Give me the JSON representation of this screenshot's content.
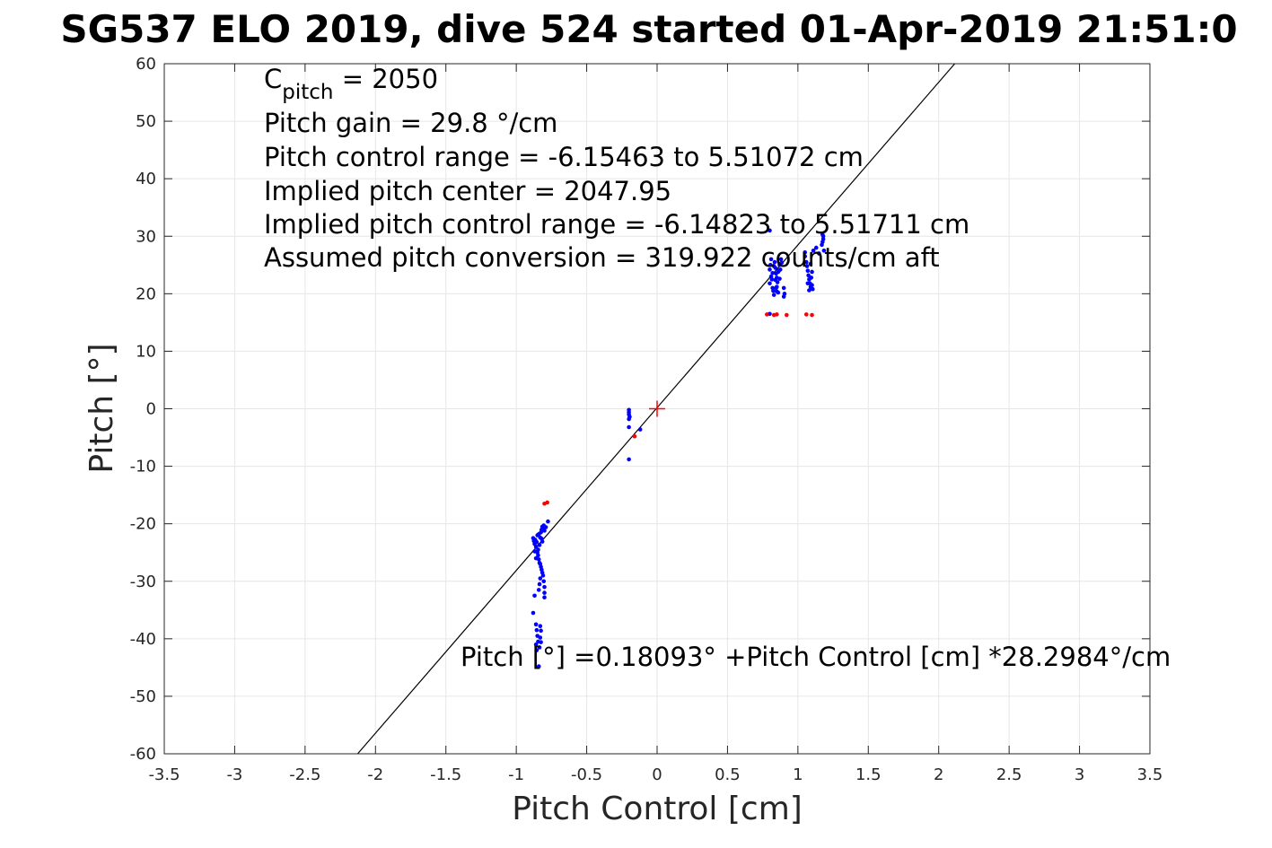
{
  "chart_data": {
    "type": "scatter",
    "title": "SG537 ELO 2019, dive 524 started 01-Apr-2019 21:51:0",
    "xlabel": "Pitch Control [cm]",
    "ylabel": "Pitch [°]",
    "xlim": [
      -3.5,
      3.5
    ],
    "ylim": [
      -60,
      60
    ],
    "xticks": [
      -3.5,
      -3,
      -2.5,
      -2,
      -1.5,
      -1,
      -0.5,
      0,
      0.5,
      1,
      1.5,
      2,
      2.5,
      3,
      3.5
    ],
    "xtick_labels": [
      "-3.5",
      "-3",
      "-2.5",
      "-2",
      "-1.5",
      "-1",
      "-0.5",
      "0",
      "0.5",
      "1",
      "1.5",
      "2",
      "2.5",
      "3",
      "3.5"
    ],
    "yticks": [
      60,
      50,
      40,
      30,
      20,
      10,
      0,
      -10,
      -20,
      -30,
      -40,
      -50,
      -60
    ],
    "ytick_labels": [
      "60",
      "50",
      "40",
      "30",
      "20",
      "10",
      "0",
      "-10",
      "-20",
      "-30",
      "-40",
      "-50",
      "-60"
    ],
    "grid": true,
    "annotations": {
      "cpitch_main": "C",
      "cpitch_sub": "pitch",
      "cpitch_value": " = 2050",
      "lines": [
        "Pitch gain = 29.8 °/cm",
        "Pitch control range = -6.15463 to 5.51072 cm",
        "Implied pitch center = 2047.95",
        "Implied pitch control range = -6.14823 to 5.51711 cm",
        "Assumed pitch conversion = 319.922 counts/cm aft"
      ],
      "fit_label": "Pitch [°] =0.18093° +Pitch Control [cm] *28.2984°/cm"
    },
    "fit": {
      "intercept": 0.18093,
      "slope": 28.2984
    },
    "center_marker": {
      "x": 0,
      "y": 0,
      "color": "#ff0000"
    },
    "colors": {
      "data": "#0000ff",
      "excluded": "#ff0000",
      "fit": "#000000",
      "grid": "#e6e6e6"
    },
    "series": [
      {
        "color": "#0000ff",
        "points": [
          [
            -0.88,
            -22.5
          ],
          [
            -0.875,
            -23.0
          ],
          [
            -0.87,
            -23.5
          ],
          [
            -0.865,
            -22.8
          ],
          [
            -0.86,
            -24.0
          ],
          [
            -0.855,
            -23.2
          ],
          [
            -0.85,
            -22.0
          ],
          [
            -0.845,
            -24.5
          ],
          [
            -0.84,
            -21.8
          ],
          [
            -0.835,
            -23.7
          ],
          [
            -0.83,
            -22.4
          ],
          [
            -0.825,
            -21.5
          ],
          [
            -0.82,
            -21.0
          ],
          [
            -0.815,
            -20.5
          ],
          [
            -0.81,
            -20.8
          ],
          [
            -0.805,
            -20.3
          ],
          [
            -0.8,
            -21.2
          ],
          [
            -0.82,
            -22.6
          ],
          [
            -0.815,
            -23.1
          ],
          [
            -0.85,
            -25.0
          ],
          [
            -0.845,
            -25.5
          ],
          [
            -0.84,
            -26.2
          ],
          [
            -0.835,
            -26.8
          ],
          [
            -0.83,
            -27.0
          ],
          [
            -0.825,
            -27.5
          ],
          [
            -0.82,
            -28.0
          ],
          [
            -0.815,
            -28.5
          ],
          [
            -0.81,
            -29.0
          ],
          [
            -0.805,
            -30.0
          ],
          [
            -0.8,
            -31.0
          ],
          [
            -0.8,
            -32.0
          ],
          [
            -0.8,
            -32.8
          ],
          [
            -0.83,
            -29.5
          ],
          [
            -0.835,
            -30.5
          ],
          [
            -0.84,
            -31.5
          ],
          [
            -0.87,
            -32.5
          ],
          [
            -0.86,
            -37.5
          ],
          [
            -0.855,
            -38.5
          ],
          [
            -0.85,
            -39.5
          ],
          [
            -0.845,
            -40.5
          ],
          [
            -0.86,
            -41.0
          ],
          [
            -0.855,
            -42.0
          ],
          [
            -0.83,
            -37.8
          ],
          [
            -0.825,
            -38.6
          ],
          [
            -0.83,
            -39.8
          ],
          [
            -0.825,
            -40.6
          ],
          [
            -0.835,
            -41.5
          ],
          [
            -0.88,
            -35.5
          ],
          [
            -0.84,
            -44.8
          ],
          [
            -0.775,
            -19.6
          ],
          [
            -0.79,
            -20.6
          ],
          [
            -0.87,
            -24.8
          ],
          [
            -0.86,
            -26.0
          ],
          [
            -0.2,
            -0.2
          ],
          [
            -0.2,
            -0.6
          ],
          [
            -0.2,
            -1.0
          ],
          [
            -0.195,
            -1.4
          ],
          [
            -0.2,
            -1.8
          ],
          [
            -0.2,
            -3.2
          ],
          [
            -0.12,
            -3.6
          ],
          [
            -0.2,
            -8.8
          ],
          [
            0.8,
            31.0
          ],
          [
            0.81,
            26.0
          ],
          [
            0.805,
            25.0
          ],
          [
            0.8,
            24.2
          ],
          [
            0.81,
            23.0
          ],
          [
            0.815,
            22.5
          ],
          [
            0.8,
            21.8
          ],
          [
            0.82,
            21.0
          ],
          [
            0.825,
            20.5
          ],
          [
            0.83,
            19.8
          ],
          [
            0.835,
            25.5
          ],
          [
            0.84,
            24.5
          ],
          [
            0.845,
            23.5
          ],
          [
            0.85,
            22.8
          ],
          [
            0.855,
            22.0
          ],
          [
            0.85,
            21.2
          ],
          [
            0.86,
            20.2
          ],
          [
            0.865,
            24.0
          ],
          [
            0.87,
            25.0
          ],
          [
            0.875,
            24.2
          ],
          [
            0.88,
            26.0
          ],
          [
            0.885,
            25.4
          ],
          [
            0.82,
            23.6
          ],
          [
            0.83,
            24.8
          ],
          [
            0.84,
            22.4
          ],
          [
            0.845,
            21.0
          ],
          [
            0.85,
            20.4
          ],
          [
            0.86,
            23.8
          ],
          [
            0.87,
            22.6
          ],
          [
            0.8,
            16.5
          ],
          [
            0.9,
            21.0
          ],
          [
            0.905,
            20.0
          ],
          [
            0.9,
            19.5
          ],
          [
            1.05,
            26.5
          ],
          [
            1.06,
            25.5
          ],
          [
            1.065,
            24.8
          ],
          [
            1.07,
            24.0
          ],
          [
            1.075,
            23.2
          ],
          [
            1.08,
            22.5
          ],
          [
            1.085,
            21.8
          ],
          [
            1.09,
            21.2
          ],
          [
            1.095,
            22.8
          ],
          [
            1.1,
            21.5
          ],
          [
            1.105,
            20.8
          ],
          [
            1.07,
            21.8
          ],
          [
            1.08,
            20.6
          ],
          [
            1.09,
            25.2
          ],
          [
            1.1,
            23.8
          ],
          [
            1.11,
            27.5
          ],
          [
            1.13,
            28.0
          ],
          [
            1.05,
            27.2
          ],
          [
            1.15,
            27.0
          ],
          [
            1.17,
            28.5
          ],
          [
            1.175,
            29.0
          ],
          [
            1.18,
            29.5
          ],
          [
            1.18,
            30.0
          ],
          [
            1.175,
            30.3
          ],
          [
            1.185,
            27.5
          ]
        ]
      },
      {
        "color": "#ff0000",
        "points": [
          [
            -0.8,
            -16.5
          ],
          [
            -0.78,
            -16.3
          ],
          [
            -0.16,
            -4.8
          ],
          [
            0.78,
            16.4
          ],
          [
            0.83,
            16.3
          ],
          [
            0.85,
            16.4
          ],
          [
            0.92,
            16.3
          ],
          [
            1.06,
            16.4
          ],
          [
            1.1,
            16.3
          ]
        ]
      }
    ]
  }
}
